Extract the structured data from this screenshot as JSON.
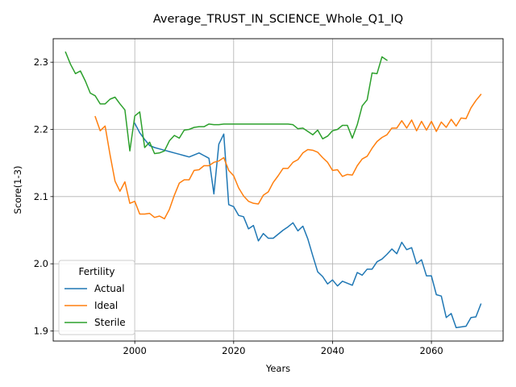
{
  "chart_data": {
    "type": "line",
    "title": "Average_TRUST_IN_SCIENCE_Whole_Q1_IQ",
    "xlabel": "Years",
    "ylabel": "Score(1-3)",
    "xlim": [
      1983.5,
      2074.5
    ],
    "ylim": [
      1.885,
      2.335
    ],
    "x_ticks": [
      2000,
      2020,
      2040,
      2060
    ],
    "y_ticks": [
      1.9,
      2.0,
      2.1,
      2.2,
      2.3
    ],
    "x_tick_labels": [
      "2000",
      "2020",
      "2040",
      "2060"
    ],
    "y_tick_labels": [
      "1.9",
      "2.0",
      "2.1",
      "2.2",
      "2.3"
    ],
    "grid": true,
    "legend": {
      "title": "Fertility",
      "placement": "lower-left"
    },
    "series": [
      {
        "name": "Actual",
        "color": "#1f77b4",
        "x": [
          2000,
          2001,
          2002,
          2003,
          2004,
          2005,
          2006,
          2007,
          2008,
          2009,
          2010,
          2011,
          2012,
          2013,
          2014,
          2015,
          2016,
          2017,
          2018,
          2019,
          2020,
          2021,
          2022,
          2023,
          2024,
          2025,
          2026,
          2027,
          2028,
          2029,
          2030,
          2031,
          2032,
          2033,
          2034,
          2035,
          2036,
          2037,
          2038,
          2039,
          2040,
          2041,
          2042,
          2043,
          2044,
          2045,
          2046,
          2047,
          2048,
          2049,
          2050,
          2051,
          2052,
          2053,
          2054,
          2055,
          2056,
          2057,
          2058,
          2059,
          2060,
          2061,
          2062,
          2063,
          2064,
          2065,
          2066,
          2067,
          2068,
          2069,
          2070
        ],
        "y": [
          2.209,
          2.195,
          2.185,
          2.176,
          2.173,
          2.171,
          2.169,
          2.167,
          2.165,
          2.163,
          2.161,
          2.159,
          2.162,
          2.165,
          2.161,
          2.157,
          2.104,
          2.178,
          2.193,
          2.088,
          2.085,
          2.072,
          2.07,
          2.052,
          2.057,
          2.034,
          2.045,
          2.038,
          2.038,
          2.044,
          2.05,
          2.055,
          2.061,
          2.049,
          2.056,
          2.037,
          2.012,
          1.988,
          1.981,
          1.97,
          1.976,
          1.967,
          1.974,
          1.971,
          1.968,
          1.987,
          1.983,
          1.992,
          1.992,
          2.003,
          2.007,
          2.014,
          2.022,
          2.015,
          2.032,
          2.021,
          2.024,
          2.0,
          2.006,
          1.982,
          1.982,
          1.954,
          1.952,
          1.92,
          1.926,
          1.905,
          1.906,
          1.907,
          1.92,
          1.921,
          1.94
        ]
      },
      {
        "name": "Ideal",
        "color": "#ff7f0e",
        "x": [
          1992,
          1993,
          1994,
          1995,
          1996,
          1997,
          1998,
          1999,
          2000,
          2001,
          2002,
          2003,
          2004,
          2005,
          2006,
          2007,
          2008,
          2009,
          2010,
          2011,
          2012,
          2013,
          2014,
          2015,
          2016,
          2017,
          2018,
          2019,
          2020,
          2021,
          2022,
          2023,
          2024,
          2025,
          2026,
          2027,
          2028,
          2029,
          2030,
          2031,
          2032,
          2033,
          2034,
          2035,
          2036,
          2037,
          2038,
          2039,
          2040,
          2041,
          2042,
          2043,
          2044,
          2045,
          2046,
          2047,
          2048,
          2049,
          2050,
          2051,
          2052,
          2053,
          2054,
          2055,
          2056,
          2057,
          2058,
          2059,
          2060,
          2061,
          2062,
          2063,
          2064,
          2065,
          2066,
          2067,
          2068,
          2069,
          2070
        ],
        "y": [
          2.219,
          2.198,
          2.205,
          2.162,
          2.123,
          2.108,
          2.122,
          2.09,
          2.093,
          2.074,
          2.074,
          2.075,
          2.069,
          2.071,
          2.067,
          2.081,
          2.102,
          2.12,
          2.125,
          2.125,
          2.139,
          2.14,
          2.146,
          2.146,
          2.151,
          2.153,
          2.158,
          2.139,
          2.131,
          2.113,
          2.101,
          2.093,
          2.09,
          2.089,
          2.102,
          2.107,
          2.121,
          2.131,
          2.142,
          2.142,
          2.151,
          2.155,
          2.165,
          2.17,
          2.169,
          2.166,
          2.158,
          2.151,
          2.139,
          2.14,
          2.13,
          2.133,
          2.132,
          2.146,
          2.156,
          2.16,
          2.172,
          2.182,
          2.188,
          2.192,
          2.202,
          2.202,
          2.213,
          2.202,
          2.214,
          2.198,
          2.212,
          2.199,
          2.212,
          2.197,
          2.211,
          2.203,
          2.215,
          2.205,
          2.217,
          2.216,
          2.232,
          2.243,
          2.252
        ]
      },
      {
        "name": "Sterile",
        "color": "#2ca02c",
        "x": [
          1986,
          1987,
          1988,
          1989,
          1990,
          1991,
          1992,
          1993,
          1994,
          1995,
          1996,
          1997,
          1998,
          1999,
          2000,
          2001,
          2002,
          2003,
          2004,
          2005,
          2006,
          2007,
          2008,
          2009,
          2010,
          2011,
          2012,
          2013,
          2014,
          2015,
          2016,
          2017,
          2018,
          2019,
          2020,
          2021,
          2022,
          2023,
          2024,
          2025,
          2026,
          2027,
          2028,
          2029,
          2030,
          2031,
          2032,
          2033,
          2034,
          2035,
          2036,
          2037,
          2038,
          2039,
          2040,
          2041,
          2042,
          2043,
          2044,
          2045,
          2046,
          2047,
          2048,
          2049,
          2050,
          2051
        ],
        "y": [
          2.315,
          2.297,
          2.283,
          2.287,
          2.272,
          2.254,
          2.25,
          2.238,
          2.238,
          2.245,
          2.248,
          2.238,
          2.229,
          2.168,
          2.22,
          2.226,
          2.173,
          2.181,
          2.164,
          2.165,
          2.168,
          2.183,
          2.191,
          2.187,
          2.199,
          2.2,
          2.203,
          2.204,
          2.204,
          2.208,
          2.207,
          2.207,
          2.208,
          2.208,
          2.208,
          2.208,
          2.208,
          2.208,
          2.208,
          2.208,
          2.208,
          2.208,
          2.208,
          2.208,
          2.208,
          2.208,
          2.207,
          2.201,
          2.202,
          2.197,
          2.192,
          2.199,
          2.186,
          2.19,
          2.198,
          2.2,
          2.206,
          2.206,
          2.187,
          2.207,
          2.235,
          2.244,
          2.284,
          2.283,
          2.308,
          2.303
        ]
      }
    ]
  }
}
